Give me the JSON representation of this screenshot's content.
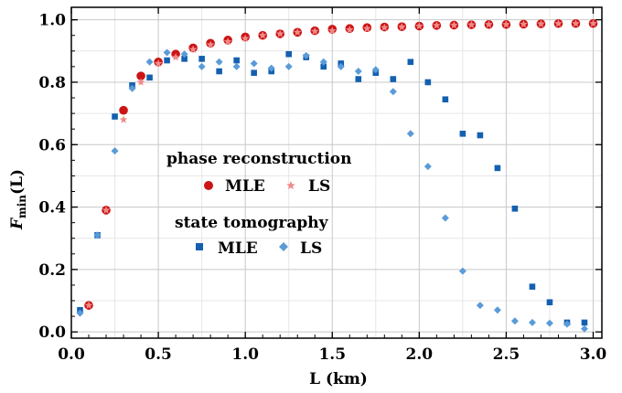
{
  "chart_data": {
    "type": "scatter",
    "xlabel": "L (km)",
    "ylabel_main": "F",
    "ylabel_sub": "min",
    "ylabel_tail": "(L)",
    "xlim": [
      0,
      3.05
    ],
    "ylim": [
      -0.02,
      1.04
    ],
    "xticks": [
      "0.0",
      "0.5",
      "1.0",
      "1.5",
      "2.0",
      "2.5",
      "3.0"
    ],
    "xtick_values": [
      0,
      0.5,
      1.0,
      1.5,
      2.0,
      2.5,
      3.0
    ],
    "yticks": [
      "0.0",
      "0.2",
      "0.4",
      "0.6",
      "0.8",
      "1.0"
    ],
    "ytick_values": [
      0,
      0.2,
      0.4,
      0.6,
      0.8,
      1.0
    ],
    "grid": true,
    "legend": {
      "group1_title": "phase reconstruction",
      "group1_items": [
        "MLE",
        "LS"
      ],
      "group2_title": "state tomography",
      "group2_items": [
        "MLE",
        "LS"
      ]
    },
    "series": [
      {
        "group": "phase reconstruction",
        "name": "MLE",
        "marker": "circle",
        "color": "#cc1414",
        "x": [
          0.1,
          0.2,
          0.3,
          0.4,
          0.5,
          0.6,
          0.7,
          0.8,
          0.9,
          1.0,
          1.1,
          1.2,
          1.3,
          1.4,
          1.5,
          1.6,
          1.7,
          1.8,
          1.9,
          2.0,
          2.1,
          2.2,
          2.3,
          2.4,
          2.5,
          2.6,
          2.7,
          2.8,
          2.9,
          3.0
        ],
        "y": [
          0.085,
          0.39,
          0.71,
          0.82,
          0.865,
          0.89,
          0.91,
          0.925,
          0.935,
          0.945,
          0.95,
          0.955,
          0.96,
          0.965,
          0.97,
          0.972,
          0.975,
          0.977,
          0.978,
          0.98,
          0.982,
          0.983,
          0.984,
          0.985,
          0.985,
          0.986,
          0.987,
          0.988,
          0.988,
          0.988
        ]
      },
      {
        "group": "phase reconstruction",
        "name": "LS",
        "marker": "star",
        "color": "#f08a8a",
        "x": [
          0.1,
          0.2,
          0.3,
          0.4,
          0.5,
          0.6,
          0.7,
          0.8,
          0.9,
          1.0,
          1.1,
          1.2,
          1.3,
          1.4,
          1.5,
          1.6,
          1.7,
          1.8,
          1.9,
          2.0,
          2.1,
          2.2,
          2.3,
          2.4,
          2.5,
          2.6,
          2.7,
          2.8,
          2.9,
          3.0
        ],
        "y": [
          0.085,
          0.39,
          0.68,
          0.8,
          0.86,
          0.88,
          0.905,
          0.92,
          0.93,
          0.94,
          0.95,
          0.955,
          0.96,
          0.963,
          0.965,
          0.968,
          0.972,
          0.975,
          0.977,
          0.98,
          0.982,
          0.983,
          0.984,
          0.985,
          0.985,
          0.986,
          0.987,
          0.988,
          0.988,
          0.988
        ]
      },
      {
        "group": "state tomography",
        "name": "MLE",
        "marker": "square",
        "color": "#1460b0",
        "x": [
          0.05,
          0.15,
          0.25,
          0.35,
          0.45,
          0.55,
          0.65,
          0.75,
          0.85,
          0.95,
          1.05,
          1.15,
          1.25,
          1.35,
          1.45,
          1.55,
          1.65,
          1.75,
          1.85,
          1.95,
          2.05,
          2.15,
          2.25,
          2.35,
          2.45,
          2.55,
          2.65,
          2.75,
          2.85,
          2.95
        ],
        "y": [
          0.07,
          0.31,
          0.69,
          0.79,
          0.815,
          0.87,
          0.875,
          0.875,
          0.835,
          0.87,
          0.83,
          0.835,
          0.89,
          0.88,
          0.85,
          0.86,
          0.81,
          0.83,
          0.81,
          0.865,
          0.8,
          0.745,
          0.635,
          0.63,
          0.525,
          0.395,
          0.145,
          0.095,
          0.03,
          0.03
        ]
      },
      {
        "group": "state tomography",
        "name": "LS",
        "marker": "diamond",
        "color": "#5a9bd8",
        "x": [
          0.05,
          0.15,
          0.25,
          0.35,
          0.45,
          0.55,
          0.65,
          0.75,
          0.85,
          0.95,
          1.05,
          1.15,
          1.25,
          1.35,
          1.45,
          1.55,
          1.65,
          1.75,
          1.85,
          1.95,
          2.05,
          2.15,
          2.25,
          2.35,
          2.45,
          2.55,
          2.65,
          2.75,
          2.85,
          2.95
        ],
        "y": [
          0.06,
          0.31,
          0.58,
          0.78,
          0.865,
          0.895,
          0.89,
          0.85,
          0.865,
          0.85,
          0.86,
          0.845,
          0.85,
          0.885,
          0.865,
          0.85,
          0.835,
          0.84,
          0.77,
          0.635,
          0.53,
          0.365,
          0.195,
          0.085,
          0.07,
          0.035,
          0.03,
          0.028,
          0.025,
          0.01
        ]
      }
    ]
  }
}
